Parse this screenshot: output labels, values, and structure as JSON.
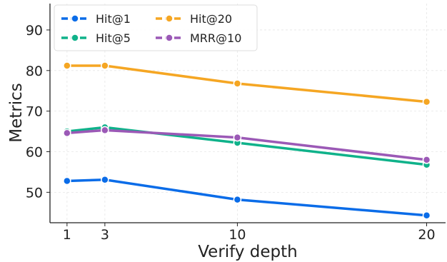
{
  "chart_data": {
    "type": "line",
    "xlabel": "Verify depth",
    "ylabel": "Metrics",
    "x": [
      1,
      3,
      10,
      20
    ],
    "xticks": [
      "1",
      "3",
      "10",
      "20"
    ],
    "yticks": [
      "50",
      "60",
      "70",
      "80",
      "90"
    ],
    "xlim": [
      0.1,
      21
    ],
    "ylim": [
      42.5,
      96.5
    ],
    "grid": true,
    "legend_position": "top-left",
    "series": [
      {
        "name": "Hit@1",
        "color": "#0a6ce8",
        "values": [
          52.8,
          53.1,
          48.2,
          44.3
        ]
      },
      {
        "name": "Hit@5",
        "color": "#0fb28a",
        "values": [
          65.0,
          66.0,
          62.2,
          56.8
        ]
      },
      {
        "name": "Hit@20",
        "color": "#f5a623",
        "values": [
          81.2,
          81.2,
          76.8,
          72.3
        ]
      },
      {
        "name": "MRR@10",
        "color": "#9b59b6",
        "values": [
          64.6,
          65.3,
          63.5,
          58.0
        ]
      }
    ]
  }
}
